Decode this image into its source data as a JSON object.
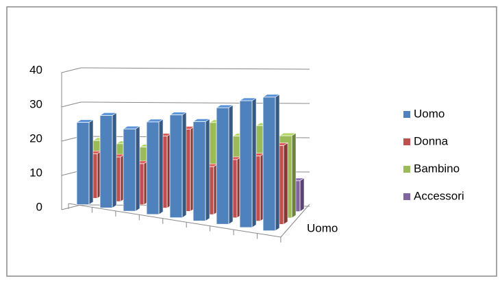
{
  "chart_data": {
    "type": "bar3d",
    "categories": [
      null,
      null,
      null,
      null,
      null,
      null,
      null,
      null,
      null
    ],
    "series": [
      {
        "name": "Uomo",
        "color": "#4f81bd",
        "values": [
          24,
          27,
          24,
          27,
          30,
          29,
          34,
          37,
          39
        ]
      },
      {
        "name": "Donna",
        "color": "#c0504d",
        "values": [
          13,
          13,
          12,
          21,
          24,
          14,
          17,
          19,
          23
        ]
      },
      {
        "name": "Bambino",
        "color": "#9bbb59",
        "values": [
          15,
          15,
          15,
          15,
          15,
          25,
          22,
          26,
          24
        ]
      },
      {
        "name": "Accessori",
        "color": "#8064a2",
        "values": [
          8,
          8,
          8,
          8,
          8,
          8,
          8,
          8,
          9
        ]
      }
    ],
    "series_axis_labels": [
      "Uomo"
    ],
    "ylim": [
      0,
      40
    ],
    "yticks": [
      0,
      10,
      20,
      30,
      40
    ],
    "grid": true,
    "legend": "right"
  }
}
